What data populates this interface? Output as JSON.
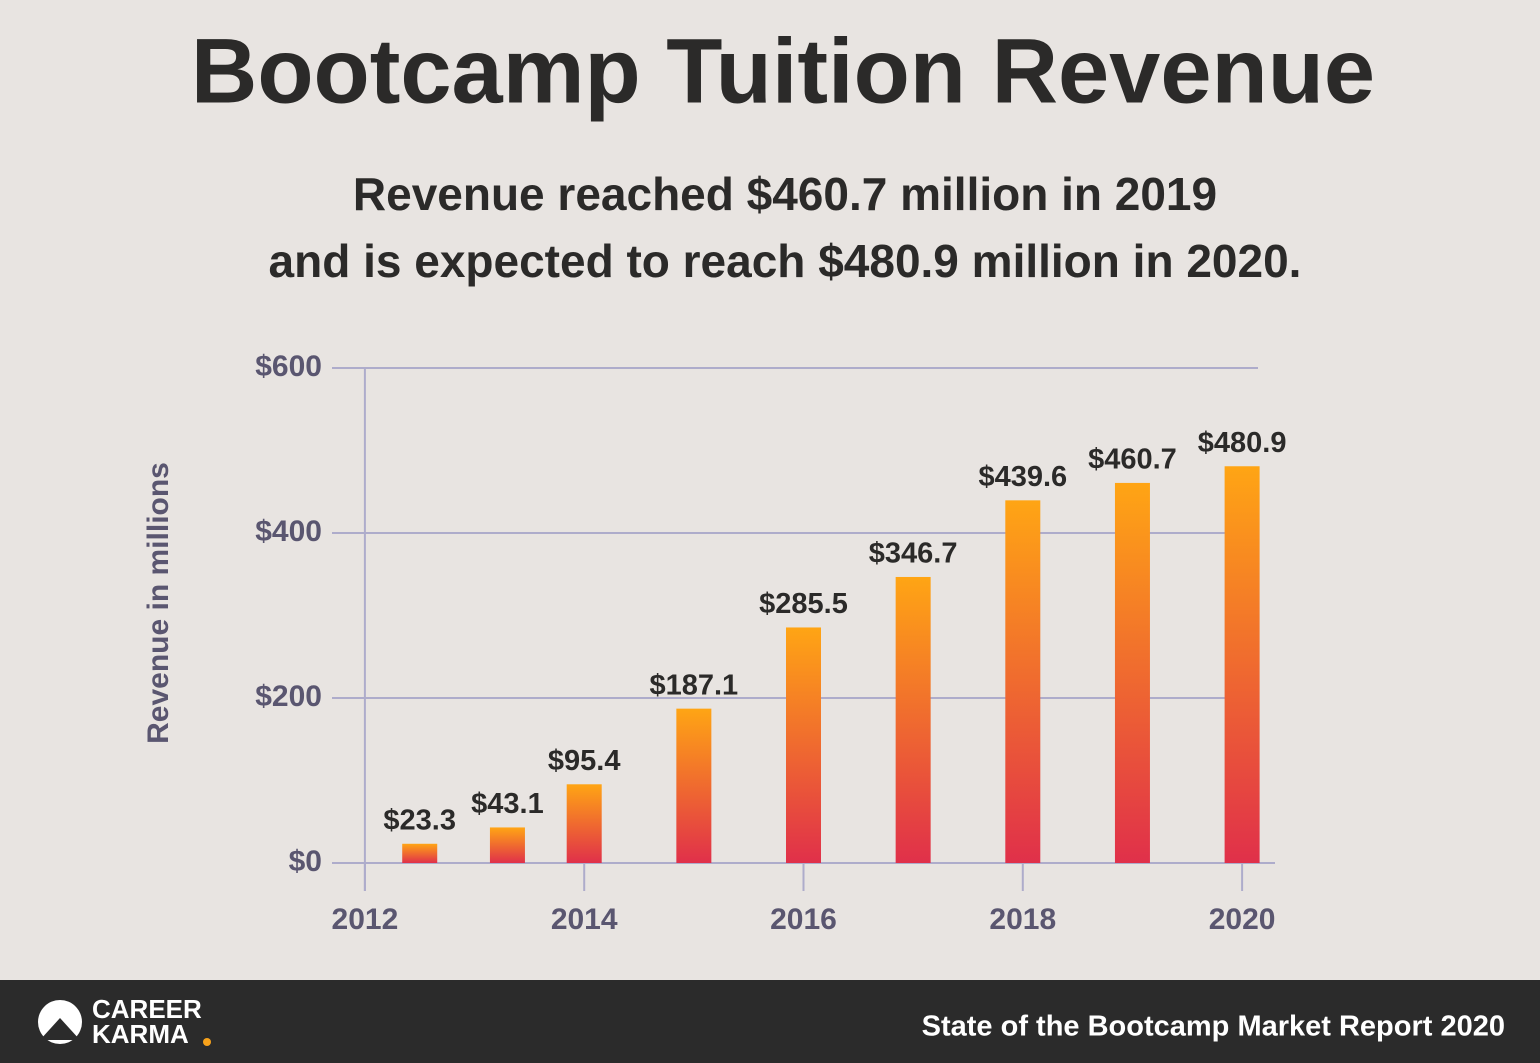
{
  "chart_data": {
    "type": "bar",
    "title": "Bootcamp Tuition Revenue",
    "subtitle": [
      "Revenue reached $460.7 million in 2019",
      "and is expected to reach $480.9 million in 2020."
    ],
    "y_label": "Revenue in millions",
    "x": [
      2012.5,
      2013.3,
      2014,
      2015,
      2016,
      2017,
      2018,
      2019,
      2020
    ],
    "values": [
      23.3,
      43.1,
      95.4,
      187.1,
      285.5,
      346.7,
      439.6,
      460.7,
      480.9
    ],
    "value_labels": [
      "$23.3",
      "$43.1",
      "$95.4",
      "$187.1",
      "$285.5",
      "$346.7",
      "$439.6",
      "$460.7",
      "$480.9"
    ],
    "color": "#ffa514",
    "gradient_end": "#e0304a",
    "xlim": [
      2011.7,
      2020.3
    ],
    "xticks": [
      2012,
      2014,
      2016,
      2018,
      2020
    ],
    "ylim": [
      0,
      600
    ],
    "yticks": [
      {
        "value": 0,
        "label": "$0"
      },
      {
        "value": 200,
        "label": "$200"
      },
      {
        "value": 400,
        "label": "$400"
      },
      {
        "value": 600,
        "label": "$600"
      }
    ],
    "grid": true
  },
  "footer": {
    "brand": [
      "CAREER",
      "KARMA"
    ],
    "source": "State of the Bootcamp Market Report 2020"
  }
}
